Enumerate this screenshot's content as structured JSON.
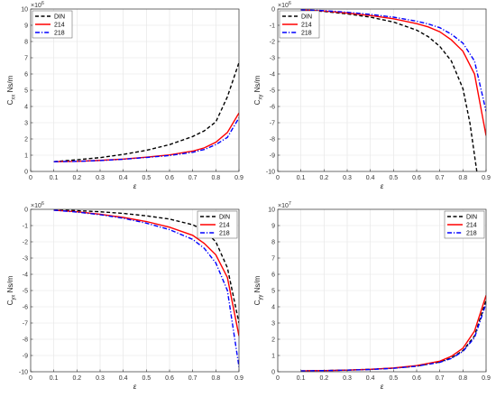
{
  "colors": {
    "DIN": "#000000",
    "214": "#ff0000",
    "218": "#0000ff",
    "grid": "#e3e3e3",
    "axis": "#333333"
  },
  "chart_data": [
    {
      "id": "cxx",
      "type": "line",
      "xlabel": "ε",
      "ylabel": "C",
      "ysub": "xx",
      "yunit": "Ns/m",
      "exponent_base": "×10",
      "exponent_power": "6",
      "xlim": [
        0,
        0.9
      ],
      "ylim": [
        0,
        10
      ],
      "xticks": [
        0,
        0.1,
        0.2,
        0.3,
        0.4,
        0.5,
        0.6,
        0.7,
        0.8,
        0.9
      ],
      "yticks": [
        0,
        1,
        2,
        3,
        4,
        5,
        6,
        7,
        8,
        9,
        10
      ],
      "grid": true,
      "legend": "top-left",
      "series": [
        {
          "name": "DIN",
          "style": "dashed",
          "x": [
            0.1,
            0.2,
            0.3,
            0.4,
            0.5,
            0.6,
            0.7,
            0.75,
            0.8,
            0.85,
            0.9
          ],
          "y": [
            0.6,
            0.72,
            0.85,
            1.05,
            1.3,
            1.65,
            2.15,
            2.5,
            3.05,
            4.6,
            6.7
          ]
        },
        {
          "name": "214",
          "style": "solid",
          "x": [
            0.1,
            0.2,
            0.3,
            0.4,
            0.5,
            0.6,
            0.7,
            0.75,
            0.8,
            0.85,
            0.9
          ],
          "y": [
            0.6,
            0.62,
            0.68,
            0.76,
            0.88,
            1.02,
            1.25,
            1.45,
            1.8,
            2.4,
            3.6
          ]
        },
        {
          "name": "218",
          "style": "dashdot",
          "x": [
            0.1,
            0.2,
            0.3,
            0.4,
            0.5,
            0.6,
            0.7,
            0.75,
            0.8,
            0.85,
            0.9
          ],
          "y": [
            0.6,
            0.62,
            0.67,
            0.75,
            0.86,
            0.98,
            1.18,
            1.35,
            1.65,
            2.1,
            3.3
          ]
        }
      ]
    },
    {
      "id": "cxy",
      "type": "line",
      "xlabel": "ε",
      "ylabel": "C",
      "ysub": "xy",
      "yunit": "Ns/m",
      "exponent_base": "×10",
      "exponent_power": "6",
      "xlim": [
        0,
        0.9
      ],
      "ylim": [
        -10,
        0
      ],
      "xticks": [
        0,
        0.1,
        0.2,
        0.3,
        0.4,
        0.5,
        0.6,
        0.7,
        0.8,
        0.9
      ],
      "yticks": [
        -10,
        -9,
        -8,
        -7,
        -6,
        -5,
        -4,
        -3,
        -2,
        -1,
        0
      ],
      "grid": true,
      "legend": "top-left",
      "series": [
        {
          "name": "DIN",
          "style": "dashed",
          "x": [
            0.1,
            0.2,
            0.3,
            0.4,
            0.5,
            0.6,
            0.65,
            0.7,
            0.75,
            0.8,
            0.83,
            0.86
          ],
          "y": [
            -0.05,
            -0.15,
            -0.3,
            -0.5,
            -0.8,
            -1.3,
            -1.7,
            -2.3,
            -3.2,
            -4.9,
            -7.0,
            -10
          ]
        },
        {
          "name": "214",
          "style": "solid",
          "x": [
            0.1,
            0.2,
            0.3,
            0.4,
            0.5,
            0.6,
            0.65,
            0.7,
            0.75,
            0.8,
            0.85,
            0.9
          ],
          "y": [
            -0.05,
            -0.12,
            -0.25,
            -0.4,
            -0.6,
            -0.9,
            -1.1,
            -1.4,
            -1.9,
            -2.6,
            -4.0,
            -7.8
          ]
        },
        {
          "name": "218",
          "style": "dashdot",
          "x": [
            0.1,
            0.2,
            0.3,
            0.4,
            0.5,
            0.6,
            0.65,
            0.7,
            0.75,
            0.8,
            0.85,
            0.9
          ],
          "y": [
            -0.05,
            -0.1,
            -0.2,
            -0.33,
            -0.5,
            -0.75,
            -0.92,
            -1.15,
            -1.55,
            -2.1,
            -3.2,
            -6.3
          ]
        }
      ]
    },
    {
      "id": "cyx",
      "type": "line",
      "xlabel": "ε",
      "ylabel": "C",
      "ysub": "yx",
      "yunit": "Ns/m",
      "exponent_base": "×10",
      "exponent_power": "6",
      "xlim": [
        0,
        0.9
      ],
      "ylim": [
        -10,
        0
      ],
      "xticks": [
        0,
        0.1,
        0.2,
        0.3,
        0.4,
        0.5,
        0.6,
        0.7,
        0.8,
        0.9
      ],
      "yticks": [
        -10,
        -9,
        -8,
        -7,
        -6,
        -5,
        -4,
        -3,
        -2,
        -1,
        0
      ],
      "grid": true,
      "legend": "top-right",
      "series": [
        {
          "name": "DIN",
          "style": "dashed",
          "x": [
            0.1,
            0.2,
            0.3,
            0.4,
            0.5,
            0.6,
            0.7,
            0.75,
            0.8,
            0.85,
            0.9
          ],
          "y": [
            -0.03,
            -0.08,
            -0.15,
            -0.25,
            -0.4,
            -0.6,
            -0.95,
            -1.3,
            -2.0,
            -3.6,
            -7.0
          ]
        },
        {
          "name": "214",
          "style": "solid",
          "x": [
            0.1,
            0.2,
            0.3,
            0.4,
            0.5,
            0.6,
            0.7,
            0.75,
            0.8,
            0.85,
            0.9
          ],
          "y": [
            -0.05,
            -0.15,
            -0.3,
            -0.5,
            -0.75,
            -1.1,
            -1.6,
            -2.1,
            -2.8,
            -4.2,
            -7.8
          ]
        },
        {
          "name": "218",
          "style": "dashdot",
          "x": [
            0.1,
            0.2,
            0.3,
            0.4,
            0.5,
            0.6,
            0.7,
            0.75,
            0.8,
            0.85,
            0.9
          ],
          "y": [
            -0.05,
            -0.17,
            -0.33,
            -0.55,
            -0.85,
            -1.25,
            -1.85,
            -2.4,
            -3.3,
            -5.0,
            -9.7
          ]
        }
      ]
    },
    {
      "id": "cyy",
      "type": "line",
      "xlabel": "ε",
      "ylabel": "C",
      "ysub": "yy",
      "yunit": "Ns/m",
      "exponent_base": "×10",
      "exponent_power": "7",
      "xlim": [
        0,
        0.9
      ],
      "ylim": [
        0,
        10
      ],
      "xticks": [
        0,
        0.1,
        0.2,
        0.3,
        0.4,
        0.5,
        0.6,
        0.7,
        0.8,
        0.9
      ],
      "yticks": [
        0,
        1,
        2,
        3,
        4,
        5,
        6,
        7,
        8,
        9,
        10
      ],
      "grid": true,
      "legend": "top-right",
      "series": [
        {
          "name": "DIN",
          "style": "dashed",
          "x": [
            0.1,
            0.2,
            0.3,
            0.4,
            0.5,
            0.6,
            0.7,
            0.75,
            0.8,
            0.85,
            0.9
          ],
          "y": [
            0.05,
            0.07,
            0.1,
            0.15,
            0.22,
            0.35,
            0.6,
            0.85,
            1.3,
            2.2,
            4.4
          ]
        },
        {
          "name": "214",
          "style": "solid",
          "x": [
            0.1,
            0.2,
            0.3,
            0.4,
            0.5,
            0.6,
            0.7,
            0.75,
            0.8,
            0.85,
            0.9
          ],
          "y": [
            0.05,
            0.07,
            0.1,
            0.15,
            0.23,
            0.38,
            0.65,
            0.95,
            1.45,
            2.5,
            4.7
          ]
        },
        {
          "name": "218",
          "style": "dashdot",
          "x": [
            0.1,
            0.2,
            0.3,
            0.4,
            0.5,
            0.6,
            0.7,
            0.75,
            0.8,
            0.85,
            0.9
          ],
          "y": [
            0.05,
            0.07,
            0.1,
            0.14,
            0.21,
            0.34,
            0.58,
            0.82,
            1.25,
            2.1,
            4.2
          ]
        }
      ]
    }
  ]
}
